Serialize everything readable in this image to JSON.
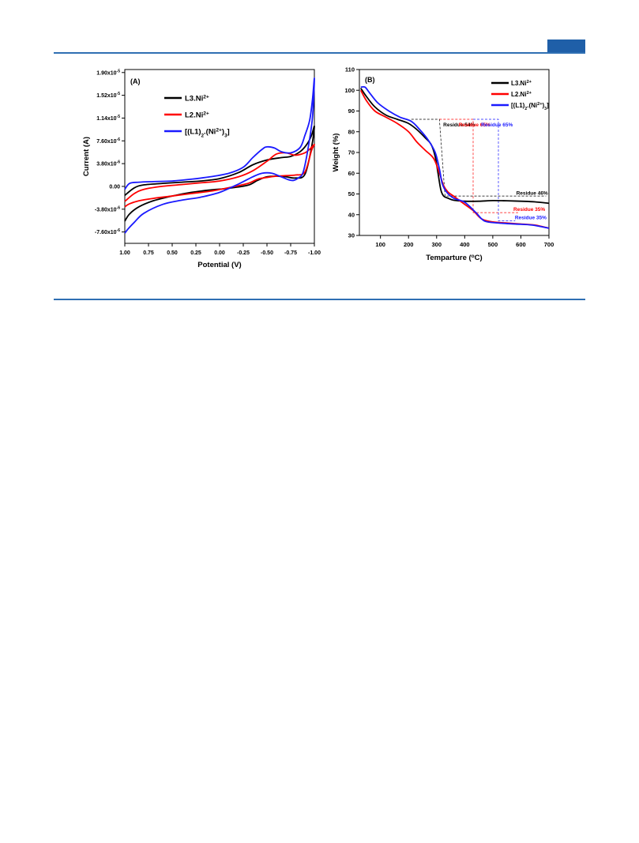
{
  "colors": {
    "rule": "#2f6fb3",
    "tab": "#1f5fa8"
  },
  "chart_data": [
    {
      "panel_label": "(A)",
      "type": "line",
      "xlabel": "Potential (V)",
      "ylabel": "Current (A)",
      "xlim": [
        1.0,
        -1.0
      ],
      "ylim": [
        -9.5e-06,
        1.95e-05
      ],
      "x_ticks": [
        1.0,
        0.75,
        0.5,
        0.25,
        0.0,
        -0.25,
        -0.5,
        -0.75,
        -1.0
      ],
      "x_tick_labels": [
        "1.00",
        "0.75",
        "0.50",
        "0.25",
        "0.00",
        "-0.25",
        "-0.50",
        "-0.75",
        "-1.00"
      ],
      "y_ticks": [
        -7.6e-06,
        -3.8e-06,
        0,
        3.8e-06,
        7.6e-06,
        1.14e-05,
        1.52e-05,
        1.9e-05
      ],
      "y_tick_labels": [
        {
          "m": "-7.60x10",
          "e": "-6"
        },
        {
          "m": "-3.80x10",
          "e": "-6"
        },
        {
          "m": "0.00",
          "e": ""
        },
        {
          "m": "3.80x10",
          "e": "-6"
        },
        {
          "m": "7.60x10",
          "e": "-6"
        },
        {
          "m": "1.14x10",
          "e": "-5"
        },
        {
          "m": "1.52x10",
          "e": "-5"
        },
        {
          "m": "1.90x10",
          "e": "-5"
        }
      ],
      "legend": [
        {
          "base": "L3.Ni",
          "sup": "2+",
          "tail": "",
          "color": "#000000"
        },
        {
          "base": "L2.Ni",
          "sup": "2+",
          "tail": "",
          "color": "#ff0000"
        },
        {
          "base": "[(L1)",
          "sub": "2",
          "mid": ".(Ni",
          "sup": "2+",
          "tail": ")",
          "sub2": "3",
          "end": "]",
          "color": "#1a1aff"
        }
      ],
      "series": [
        {
          "color": "#000000",
          "x": [
            1.0,
            0.9,
            0.8,
            0.6,
            0.4,
            0.2,
            0.0,
            -0.2,
            -0.35,
            -0.5,
            -0.65,
            -0.75,
            -0.85,
            -0.92,
            -0.97,
            -1.0,
            -0.97,
            -0.9,
            -0.8,
            -0.7,
            -0.6,
            -0.5,
            -0.4,
            -0.3,
            -0.1,
            0.1,
            0.3,
            0.5,
            0.7,
            0.85,
            0.95,
            1.0
          ],
          "y": [
            -1.5e-06,
            -2.5e-07,
            2.5e-07,
            5e-07,
            7e-07,
            9e-07,
            1.3e-06,
            2.3e-06,
            3.6e-06,
            4.4e-06,
            4.8e-06,
            5e-06,
            5.8e-06,
            7e-06,
            8.5e-06,
            1e-05,
            6.5e-06,
            2e-06,
            1.4e-06,
            1.6e-06,
            1.7e-06,
            1.6e-06,
            1e-06,
            2e-07,
            -3e-07,
            -6e-07,
            -1e-06,
            -1.6e-06,
            -2.4e-06,
            -3.4e-06,
            -4.6e-06,
            -5.8e-06
          ]
        },
        {
          "color": "#ff0000",
          "x": [
            1.0,
            0.9,
            0.8,
            0.6,
            0.4,
            0.2,
            0.0,
            -0.2,
            -0.35,
            -0.5,
            -0.6,
            -0.7,
            -0.8,
            -0.9,
            -0.95,
            -1.0,
            -0.97,
            -0.9,
            -0.8,
            -0.7,
            -0.6,
            -0.5,
            -0.4,
            -0.3,
            -0.1,
            0.1,
            0.3,
            0.5,
            0.7,
            0.85,
            0.95,
            1.0
          ],
          "y": [
            -2.5e-06,
            -1.2e-06,
            -5e-07,
            2e-08,
            3e-07,
            6e-07,
            9e-07,
            1.6e-06,
            2.6e-06,
            4.2e-06,
            5.4e-06,
            5.6e-06,
            5.2e-06,
            5.6e-06,
            6.2e-06,
            7e-06,
            6e-06,
            2.4e-06,
            1.9e-06,
            1.8e-06,
            1.7e-06,
            1.5e-06,
            1.2e-06,
            5e-07,
            -2e-07,
            -8e-07,
            -1.2e-06,
            -1.6e-06,
            -2e-06,
            -2.4e-06,
            -2.9e-06,
            -3.4e-06
          ]
        },
        {
          "color": "#1a1aff",
          "x": [
            1.0,
            0.95,
            0.85,
            0.7,
            0.5,
            0.3,
            0.1,
            -0.1,
            -0.25,
            -0.35,
            -0.45,
            -0.5,
            -0.58,
            -0.65,
            -0.75,
            -0.85,
            -0.9,
            -0.95,
            -0.98,
            -1.0,
            -0.98,
            -0.93,
            -0.88,
            -0.83,
            -0.78,
            -0.73,
            -0.65,
            -0.55,
            -0.45,
            -0.35,
            -0.2,
            0.0,
            0.2,
            0.4,
            0.6,
            0.8,
            0.9,
            0.96,
            1.0
          ],
          "y": [
            -5e-07,
            5e-07,
            7e-07,
            8e-07,
            9e-07,
            1.2e-06,
            1.6e-06,
            2.2e-06,
            3.2e-06,
            4.8e-06,
            6.2e-06,
            6.6e-06,
            6.4e-06,
            5.8e-06,
            5.6e-06,
            6.5e-06,
            8.5e-06,
            1.1e-05,
            1.45e-05,
            1.8e-05,
            1.15e-05,
            6e-06,
            2.3e-06,
            1.4e-06,
            1e-06,
            1.1e-06,
            1.6e-06,
            2.2e-06,
            2.2e-06,
            1.6e-06,
            4e-07,
            -1e-06,
            -1.8e-06,
            -2.3e-06,
            -3e-06,
            -4.5e-06,
            -6e-06,
            -7e-06,
            -7.8e-06
          ]
        }
      ]
    },
    {
      "panel_label": "(B)",
      "type": "line",
      "xlabel": "Temparture",
      "xlabel_unit": {
        "pre": "(",
        "sup": "o",
        "post": "C)"
      },
      "ylabel": "Weight (%)",
      "xlim": [
        25,
        700
      ],
      "ylim": [
        30,
        110
      ],
      "x_ticks": [
        100,
        200,
        300,
        400,
        500,
        600,
        700
      ],
      "y_ticks": [
        30,
        40,
        50,
        60,
        70,
        80,
        90,
        100,
        110
      ],
      "legend": [
        {
          "base": "L3.Ni",
          "sup": "2+",
          "tail": "",
          "color": "#000000"
        },
        {
          "base": "L2.Ni",
          "sup": "2+",
          "tail": "",
          "color": "#ff0000"
        },
        {
          "base": "[(L1)",
          "sub": "2",
          "mid": ".(Ni",
          "sup": "2+",
          "tail": ")",
          "sub2": "3",
          "end": "]",
          "color": "#1a1aff"
        }
      ],
      "annotations": [
        {
          "text": "Residue 54%",
          "color": "#000000",
          "x": 380,
          "y": 82.5
        },
        {
          "text": "Residue 65%",
          "color": "#ff0000",
          "x": 435,
          "y": 82.5
        },
        {
          "text": "Residue 65%",
          "color": "#1a1aff",
          "x": 515,
          "y": 82.5
        },
        {
          "text": "Residue 46%",
          "color": "#000000",
          "x": 640,
          "y": 49.6
        },
        {
          "text": "Residue 35%",
          "color": "#ff0000",
          "x": 630,
          "y": 41.8
        },
        {
          "text": "Residue 35%",
          "color": "#1a1aff",
          "x": 635,
          "y": 37.8
        }
      ],
      "guides": [
        {
          "color": "#000000",
          "points": [
            [
              210,
              86
            ],
            [
              310,
              86
            ],
            [
              330,
              49
            ],
            [
              690,
              49
            ]
          ]
        },
        {
          "color": "#ff0000",
          "points": [
            [
              310,
              86
            ],
            [
              430,
              86
            ],
            [
              430,
              41
            ],
            [
              590,
              41
            ]
          ]
        },
        {
          "color": "#1a1aff",
          "points": [
            [
              430,
              86
            ],
            [
              520,
              86
            ],
            [
              520,
              37
            ],
            [
              580,
              37
            ]
          ]
        }
      ],
      "series": [
        {
          "color": "#000000",
          "x": [
            30,
            50,
            80,
            120,
            160,
            200,
            230,
            260,
            280,
            295,
            305,
            315,
            325,
            340,
            360,
            400,
            450,
            500,
            550,
            600,
            650,
            700
          ],
          "y": [
            101,
            97,
            92,
            88,
            86,
            84,
            81,
            77,
            74,
            68,
            60,
            52,
            49,
            48,
            47,
            46.5,
            46.5,
            46.8,
            46.7,
            46.5,
            46.2,
            45.5
          ]
        },
        {
          "color": "#ff0000",
          "x": [
            30,
            50,
            80,
            120,
            160,
            200,
            230,
            260,
            290,
            310,
            325,
            340,
            360,
            400,
            430,
            460,
            500,
            550,
            600,
            650,
            700
          ],
          "y": [
            100,
            95,
            90,
            87,
            84,
            80,
            75,
            71,
            67,
            60,
            54,
            51,
            49,
            45,
            42,
            38,
            36.5,
            36,
            35.5,
            35,
            33.5
          ]
        },
        {
          "color": "#1a1aff",
          "x": [
            30,
            45,
            60,
            90,
            130,
            170,
            210,
            240,
            270,
            295,
            310,
            320,
            335,
            360,
            400,
            440,
            470,
            520,
            580,
            640,
            700
          ],
          "y": [
            101.5,
            101.5,
            99,
            94,
            90,
            87,
            85,
            81,
            76,
            70,
            62,
            55,
            51,
            48,
            46,
            41,
            37,
            36,
            35.5,
            35,
            33.5
          ]
        }
      ]
    }
  ]
}
